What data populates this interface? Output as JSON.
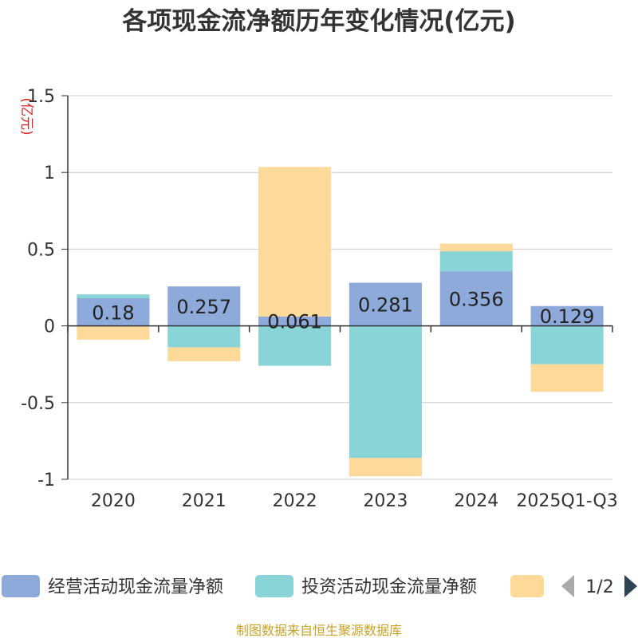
{
  "chart_data": {
    "type": "bar",
    "stacked": true,
    "title": "各项现金流净额历年变化情况(亿元)",
    "ylabel": "(亿元)",
    "xlabel": "",
    "ylim": [
      -1,
      1.5
    ],
    "yticks": [
      -1,
      -0.5,
      0,
      0.5,
      1,
      1.5
    ],
    "ytick_labels": [
      "-1",
      "-0.5",
      "0",
      "0.5",
      "1",
      "1.5"
    ],
    "grid": true,
    "categories": [
      "2020",
      "2021",
      "2022",
      "2023",
      "2024",
      "2025Q1-Q3"
    ],
    "series": [
      {
        "name": "经营活动现金流量净额",
        "color": "#8eaadb",
        "values": [
          0.18,
          0.257,
          0.061,
          0.281,
          0.356,
          0.129
        ],
        "labels": [
          "0.18",
          "0.257",
          "0.061",
          "0.281",
          "0.356",
          "0.129"
        ]
      },
      {
        "name": "投资活动现金流量净额",
        "color": "#88d4d6",
        "values": [
          0.025,
          -0.14,
          -0.26,
          -0.86,
          0.13,
          -0.25
        ]
      },
      {
        "name": "",
        "color": "#fdd99a",
        "values": [
          -0.09,
          -0.09,
          0.975,
          -0.12,
          0.05,
          -0.18
        ]
      }
    ]
  },
  "legend": {
    "items": [
      {
        "label": "经营活动现金流量净额",
        "color": "#8eaadb"
      },
      {
        "label": "投资活动现金流量净额",
        "color": "#88d4d6"
      },
      {
        "label": "",
        "color": "#fdd99a"
      }
    ],
    "page": "1/2",
    "prev_icon": "chevron-left-icon",
    "next_icon": "chevron-right-icon"
  },
  "source": "制图数据来自恒生聚源数据库"
}
